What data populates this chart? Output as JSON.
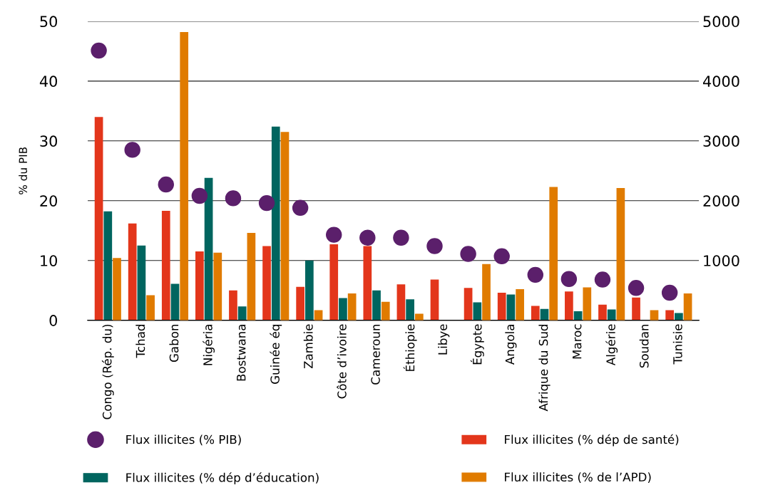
{
  "chart_data": {
    "type": "bar",
    "ylabel": "% du PIB",
    "categories": [
      "Congo (Rép. du)",
      "Tchad",
      "Gabon",
      "Nigéria",
      "Bostwana",
      "Guinée éq",
      "Zambie",
      "Côte d’ivoire",
      "Cameroun",
      "Éthiopie",
      "Libye",
      "Égypte",
      "Angola",
      "Afrique du Sud",
      "Maroc",
      "Algérie",
      "Soudan",
      "Tunisie"
    ],
    "series": [
      {
        "name": "Flux illicites (% PIB)",
        "type": "scatter",
        "marker": "circle",
        "color": "#5b1f6b",
        "values": [
          45.1,
          28.5,
          22.7,
          20.8,
          20.4,
          19.6,
          18.8,
          14.3,
          13.8,
          13.8,
          12.4,
          11.1,
          10.7,
          7.6,
          6.9,
          6.8,
          5.4,
          4.6
        ]
      },
      {
        "name": "Flux illicites (% dép de santé)",
        "color": "#e3361b",
        "values": [
          34.0,
          16.2,
          18.3,
          11.5,
          5.0,
          12.4,
          5.6,
          12.7,
          12.4,
          6.0,
          6.8,
          5.4,
          4.6,
          2.4,
          4.8,
          2.6,
          3.8,
          1.7
        ]
      },
      {
        "name": "Flux illicites (% dép d’éducation)",
        "color": "#00655f",
        "values": [
          18.2,
          12.5,
          6.1,
          23.8,
          2.3,
          32.4,
          10.0,
          3.7,
          5.0,
          3.5,
          null,
          3.0,
          4.3,
          1.9,
          1.5,
          1.8,
          null,
          1.2
        ]
      },
      {
        "name": "Flux illicites (% de l’APD)",
        "axis": "y2",
        "color": "#e07b00",
        "values": [
          1040,
          420,
          4820,
          1130,
          1460,
          3150,
          170,
          450,
          310,
          110,
          null,
          940,
          520,
          2230,
          550,
          2210,
          170,
          450
        ]
      }
    ],
    "ylim": [
      0,
      50
    ],
    "yticks": [
      0,
      10,
      20,
      30,
      40,
      50
    ],
    "y2lim": [
      0,
      5000
    ],
    "y2ticks": [
      1000,
      2000,
      3000,
      4000,
      5000
    ],
    "grid": "y",
    "legend": "bottom"
  }
}
